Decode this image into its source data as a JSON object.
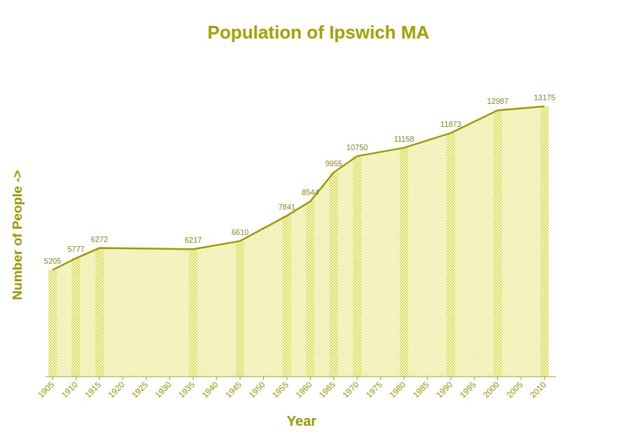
{
  "chart_data": {
    "type": "area",
    "title": "Population of Ipswich MA",
    "x_label": "Year",
    "y_label": "Number of People  ->",
    "x": [
      1905,
      1910,
      1915,
      1935,
      1945,
      1955,
      1960,
      1965,
      1970,
      1980,
      1990,
      2000,
      2010
    ],
    "values": [
      5205,
      5777,
      6272,
      6217,
      6610,
      7841,
      8544,
      9955,
      10750,
      11158,
      11873,
      12987,
      13175
    ],
    "color": "#9b9b00",
    "xlim": [
      1903.5,
      2012.5
    ],
    "xticks": [
      1905,
      1910,
      1915,
      1920,
      1925,
      1930,
      1935,
      1940,
      1945,
      1950,
      1955,
      1960,
      1965,
      1970,
      1975,
      1980,
      1985,
      1990,
      1995,
      2000,
      2005,
      2010
    ],
    "ylim": [
      0,
      16000
    ],
    "data_labels": true,
    "tick_labels": "x"
  }
}
